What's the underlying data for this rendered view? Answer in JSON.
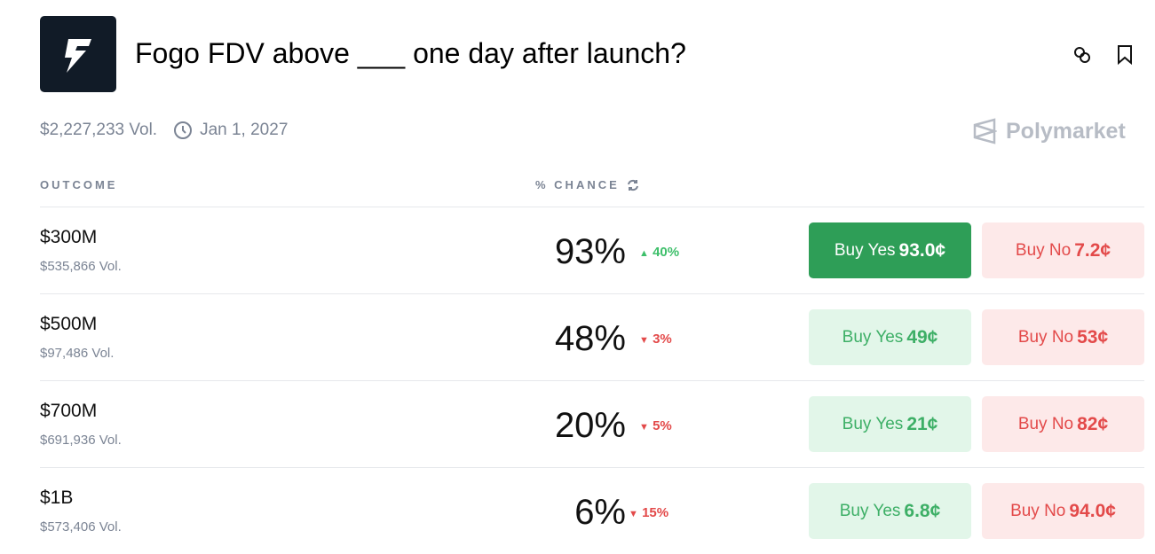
{
  "title": "Fogo FDV above ___ one day after launch?",
  "volume": "$2,227,233 Vol.",
  "end_date": "Jan 1, 2027",
  "brand": "Polymarket",
  "headers": {
    "outcome": "OUTCOME",
    "chance": "% CHANCE"
  },
  "colors": {
    "green": "#2e9e57",
    "red": "#e34a4a"
  },
  "outcomes": [
    {
      "name": "$300M",
      "vol": "$535,866 Vol.",
      "chance": "93%",
      "change": "40%",
      "dir": "up",
      "yes_label": "Buy Yes",
      "yes_price": "93.0¢",
      "no_label": "Buy No",
      "no_price": "7.2¢"
    },
    {
      "name": "$500M",
      "vol": "$97,486 Vol.",
      "chance": "48%",
      "change": "3%",
      "dir": "down",
      "yes_label": "Buy Yes",
      "yes_price": "49¢",
      "no_label": "Buy No",
      "no_price": "53¢"
    },
    {
      "name": "$700M",
      "vol": "$691,936 Vol.",
      "chance": "20%",
      "change": "5%",
      "dir": "down",
      "yes_label": "Buy Yes",
      "yes_price": "21¢",
      "no_label": "Buy No",
      "no_price": "82¢"
    },
    {
      "name": "$1B",
      "vol": "$573,406 Vol.",
      "chance": "6%",
      "change": "15%",
      "dir": "down",
      "yes_label": "Buy Yes",
      "yes_price": "6.8¢",
      "no_label": "Buy No",
      "no_price": "94.0¢"
    }
  ]
}
